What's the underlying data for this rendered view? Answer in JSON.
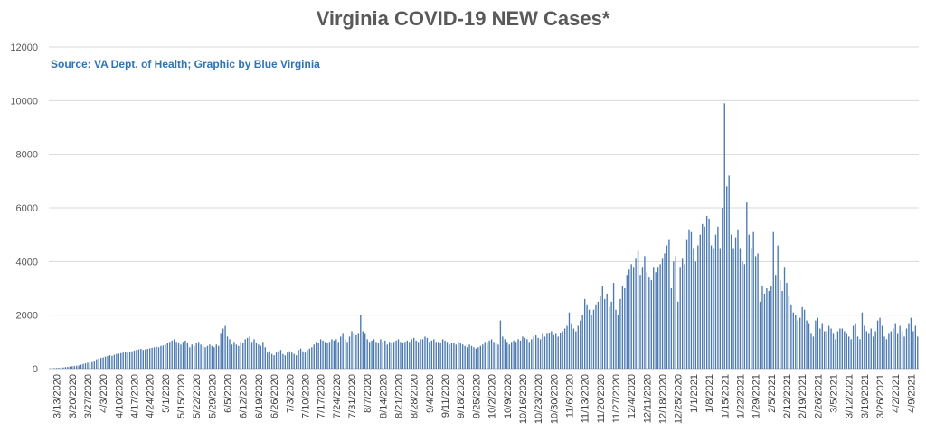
{
  "chart_data": {
    "type": "bar",
    "title": "Virginia COVID-19 NEW Cases*",
    "source": "Source: VA Dept. of Health; Graphic by Blue Virginia",
    "xlabel": "",
    "ylabel": "",
    "ylim": [
      0,
      12000
    ],
    "y_ticks": [
      "0",
      "2000",
      "4000",
      "6000",
      "8000",
      "10000",
      "12000"
    ],
    "grid": true,
    "legend": "none",
    "bar_color": "#4a78b0",
    "x_tick_labels": [
      "3/13/2020",
      "3/20/2020",
      "3/27/2020",
      "4/3/2020",
      "4/10/2020",
      "4/17/2020",
      "4/24/2020",
      "5/1/2020",
      "5/15/2020",
      "5/22/2020",
      "5/29/2020",
      "6/5/2020",
      "6/12/2020",
      "6/19/2020",
      "6/26/2020",
      "7/3/2020",
      "7/10/2020",
      "7/17/2020",
      "7/24/2020",
      "7/31/2020",
      "8/7/2020",
      "8/14/2020",
      "8/21/2020",
      "8/28/2020",
      "9/4/2020",
      "9/11/2020",
      "9/18/2020",
      "9/25/2020",
      "10/2/2020",
      "10/9/2020",
      "10/16/2020",
      "10/23/2020",
      "10/30/2020",
      "11/6/2020",
      "11/13/2020",
      "11/20/2020",
      "11/27/2020",
      "12/4/2020",
      "12/11/2020",
      "12/18/2020",
      "12/25/2020",
      "1/1/2021",
      "1/8/2021",
      "1/15/2021",
      "1/22/2021",
      "1/29/2021",
      "2/5/2021",
      "2/12/2021",
      "2/19/2021",
      "2/26/2021",
      "3/5/2021",
      "3/12/2021",
      "3/19/2021",
      "3/26/2021",
      "4/2/2021",
      "4/9/2021"
    ],
    "weekly_values": [
      [
        10,
        15,
        20,
        25,
        30,
        40,
        45
      ],
      [
        60,
        70,
        80,
        90,
        100,
        110,
        120
      ],
      [
        150,
        180,
        200,
        220,
        250,
        280,
        300
      ],
      [
        350,
        380,
        400,
        420,
        450,
        480,
        500
      ],
      [
        480,
        520,
        550,
        560,
        580,
        600,
        620
      ],
      [
        600,
        620,
        650,
        680,
        700,
        720,
        740
      ],
      [
        700,
        720,
        740,
        760,
        780,
        800,
        820
      ],
      [
        800,
        850,
        870,
        900,
        950,
        1000,
        1050
      ],
      [
        1100,
        1000,
        950,
        900,
        1000,
        1050,
        950
      ],
      [
        800,
        900,
        850,
        950,
        1000,
        900,
        850
      ],
      [
        800,
        850,
        900,
        850,
        800,
        900,
        850
      ],
      [
        1300,
        1500,
        1600,
        1200,
        1100,
        900,
        1000
      ],
      [
        900,
        850,
        1000,
        950,
        1100,
        1150,
        1200
      ],
      [
        1000,
        1100,
        950,
        900,
        850,
        1000,
        800
      ],
      [
        600,
        650,
        550,
        500,
        600,
        650,
        700
      ],
      [
        550,
        500,
        600,
        650,
        600,
        550,
        500
      ],
      [
        700,
        750,
        650,
        600,
        700,
        750,
        800
      ],
      [
        900,
        1000,
        950,
        1100,
        1050,
        1000,
        950
      ],
      [
        1000,
        1100,
        1050,
        1100,
        1000,
        1200,
        1300
      ],
      [
        1100,
        1000,
        1200,
        1400,
        1300,
        1250,
        1300
      ],
      [
        2000,
        1400,
        1300,
        1100,
        1000,
        1050,
        1100
      ],
      [
        1000,
        950,
        1100,
        1000,
        1050,
        900,
        1000
      ],
      [
        950,
        1000,
        1050,
        1100,
        1000,
        950,
        1000
      ],
      [
        1050,
        1000,
        1100,
        1150,
        1050,
        1000,
        1100
      ],
      [
        1100,
        1200,
        1150,
        1000,
        1050,
        1100,
        1000
      ],
      [
        1000,
        950,
        1100,
        1050,
        1000,
        900,
        950
      ],
      [
        950,
        900,
        1000,
        950,
        900,
        850,
        800
      ],
      [
        900,
        850,
        800,
        750,
        800,
        850,
        900
      ],
      [
        1000,
        950,
        1050,
        1100,
        1000,
        950,
        900
      ],
      [
        1800,
        1200,
        1100,
        1000,
        900,
        1000,
        1050
      ],
      [
        1000,
        1100,
        1050,
        1200,
        1150,
        1100,
        1000
      ],
      [
        1100,
        1200,
        1250,
        1150,
        1100,
        1300,
        1200
      ],
      [
        1300,
        1350,
        1400,
        1250,
        1300,
        1200,
        1350
      ],
      [
        1400,
        1500,
        1600,
        2100,
        1700,
        1500,
        1400
      ],
      [
        1600,
        1800,
        2000,
        2600,
        2400,
        2200,
        2000
      ],
      [
        2200,
        2400,
        2500,
        2700,
        3100,
        2600,
        2800
      ],
      [
        2300,
        2500,
        3200,
        2200,
        2000,
        2600,
        3100
      ],
      [
        3000,
        3500,
        3700,
        3900,
        3800,
        4100,
        4400
      ],
      [
        3500,
        3800,
        4200,
        3600,
        3400,
        3300,
        3800
      ],
      [
        3600,
        3800,
        3900,
        4100,
        4300,
        4600,
        4800
      ],
      [
        3000,
        4000,
        4200,
        2500,
        3800,
        4100,
        3900
      ],
      [
        4800,
        5200,
        5100,
        4500,
        4000,
        4600,
        5000
      ],
      [
        5400,
        5300,
        5700,
        5600,
        4600,
        4500,
        5000
      ],
      [
        5300,
        4500,
        6000,
        9900,
        6800,
        7200,
        5000
      ],
      [
        4500,
        4900,
        5200,
        4500,
        4000,
        3900,
        6200
      ],
      [
        5000,
        4500,
        5100,
        4200,
        4300,
        2500,
        3100
      ],
      [
        2800,
        3000,
        2900,
        3100,
        5100,
        3500,
        4600
      ],
      [
        3300,
        2900,
        3800,
        3200,
        2700,
        2400,
        2100
      ],
      [
        2000,
        1800,
        1900,
        2300,
        2200,
        1800,
        1700
      ],
      [
        1300,
        1200,
        1800,
        1900,
        1500,
        1700,
        1400
      ],
      [
        1400,
        1600,
        1500,
        1300,
        1100,
        1400,
        1500
      ],
      [
        1500,
        1400,
        1300,
        1200,
        1100,
        1600,
        1700
      ],
      [
        1200,
        1100,
        2100,
        1600,
        1400,
        1300,
        1500
      ],
      [
        1200,
        1400,
        1800,
        1900,
        1600,
        1200,
        1100
      ],
      [
        1300,
        1400,
        1500,
        1700,
        1300,
        1600,
        1400
      ],
      [
        1200,
        1500,
        1700,
        1900,
        1400,
        1600,
        1200
      ]
    ]
  }
}
